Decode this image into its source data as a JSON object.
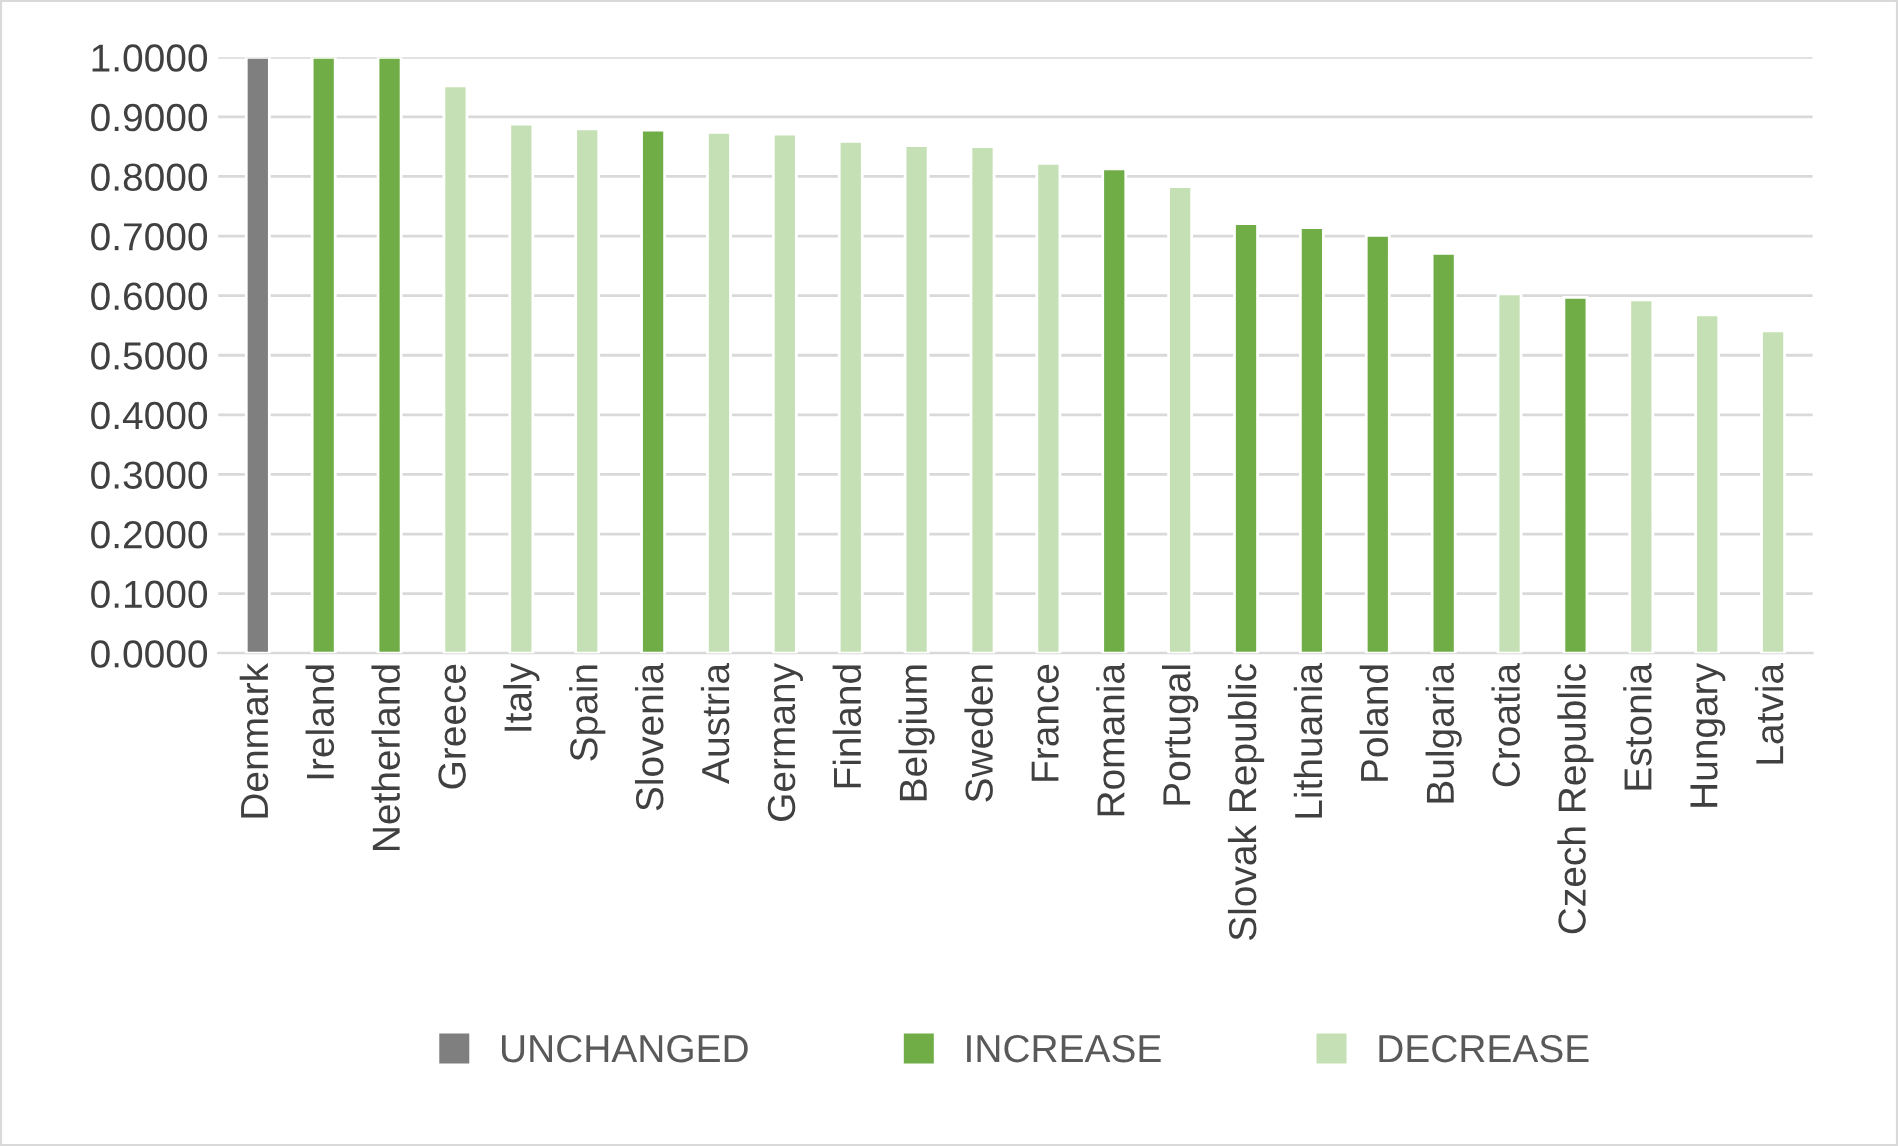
{
  "chart_data": {
    "type": "bar",
    "categories": [
      "Denmark",
      "Ireland",
      "Netherland",
      "Greece",
      "Italy",
      "Spain",
      "Slovenia",
      "Austria",
      "Germany",
      "Finland",
      "Belgium",
      "Sweden",
      "France",
      "Romania",
      "Portugal",
      "Slovak Republic",
      "Lithuania",
      "Poland",
      "Bulgaria",
      "Croatia",
      "Czech Republic",
      "Estonia",
      "Hungary",
      "Latvia"
    ],
    "series": [
      {
        "name": "UNCHANGED",
        "color": "#7f7f7f",
        "values": [
          1.0,
          null,
          null,
          null,
          null,
          null,
          null,
          null,
          null,
          null,
          null,
          null,
          null,
          null,
          null,
          null,
          null,
          null,
          null,
          null,
          null,
          null,
          null,
          null
        ]
      },
      {
        "name": "INCREASE",
        "color": "#70ad47",
        "values": [
          null,
          1.0,
          1.0,
          null,
          null,
          null,
          0.878,
          null,
          null,
          null,
          null,
          null,
          null,
          0.813,
          null,
          0.721,
          0.714,
          0.701,
          0.671,
          null,
          0.597,
          null,
          null,
          null
        ]
      },
      {
        "name": "DECREASE",
        "color": "#c5e0b4",
        "values": [
          null,
          null,
          null,
          0.952,
          0.888,
          0.88,
          null,
          0.874,
          0.871,
          0.859,
          0.852,
          0.85,
          0.822,
          null,
          0.783,
          null,
          null,
          null,
          null,
          0.603,
          null,
          0.593,
          0.568,
          0.541
        ]
      }
    ],
    "ylim": [
      0,
      1
    ],
    "yticks": [
      {
        "value": 0,
        "label": "0.0000"
      },
      {
        "value": 0.1,
        "label": "0.1000"
      },
      {
        "value": 0.2,
        "label": "0.2000"
      },
      {
        "value": 0.3,
        "label": "0.3000"
      },
      {
        "value": 0.4,
        "label": "0.4000"
      },
      {
        "value": 0.5,
        "label": "0.5000"
      },
      {
        "value": 0.6,
        "label": "0.6000"
      },
      {
        "value": 0.7,
        "label": "0.7000"
      },
      {
        "value": 0.8,
        "label": "0.8000"
      },
      {
        "value": 0.9,
        "label": "0.9000"
      },
      {
        "value": 1,
        "label": "1.0000"
      }
    ],
    "grid": "y",
    "legend": "bottom"
  }
}
